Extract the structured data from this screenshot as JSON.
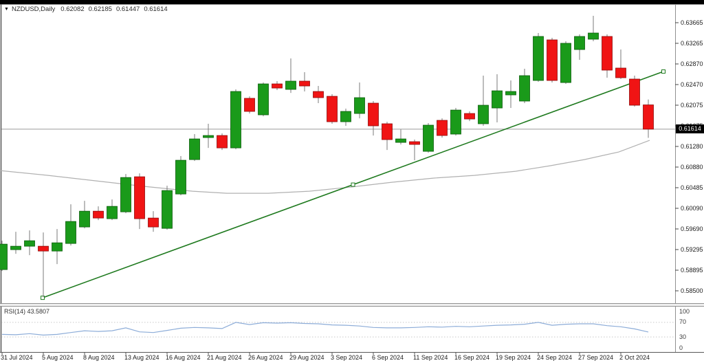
{
  "header": {
    "dropdown_icon": "▼",
    "symbol": "NZDUSD,Daily",
    "open": "0.62082",
    "high": "0.62185",
    "low": "0.61447",
    "close": "0.61614"
  },
  "price_axis": {
    "labels": [
      "0.63665",
      "0.63265",
      "0.62870",
      "0.62470",
      "0.62075",
      "0.61675",
      "0.61280",
      "0.60880",
      "0.60485",
      "0.60090",
      "0.59690",
      "0.59295",
      "0.58895",
      "0.58500"
    ],
    "current_price_badge": "0.61614"
  },
  "time_axis": {
    "labels": [
      {
        "text": "31 Jul 2024",
        "index": 0
      },
      {
        "text": "5 Aug 2024",
        "index": 3
      },
      {
        "text": "8 Aug 2024",
        "index": 6
      },
      {
        "text": "13 Aug 2024",
        "index": 9
      },
      {
        "text": "16 Aug 2024",
        "index": 12
      },
      {
        "text": "21 Aug 2024",
        "index": 15
      },
      {
        "text": "26 Aug 2024",
        "index": 18
      },
      {
        "text": "29 Aug 2024",
        "index": 21
      },
      {
        "text": "3 Sep 2024",
        "index": 24
      },
      {
        "text": "6 Sep 2024",
        "index": 27
      },
      {
        "text": "11 Sep 2024",
        "index": 30
      },
      {
        "text": "16 Sep 2024",
        "index": 33
      },
      {
        "text": "19 Sep 2024",
        "index": 36
      },
      {
        "text": "24 Sep 2024",
        "index": 39
      },
      {
        "text": "27 Sep 2024",
        "index": 42
      },
      {
        "text": "2 Oct 2024",
        "index": 45
      }
    ]
  },
  "rsi_panel": {
    "label": "RSI(14) 43.5807",
    "scale": [
      "100",
      "70",
      "30",
      "0"
    ]
  },
  "colors": {
    "bull": "#1a9a1a",
    "bull_border": "#0c5c0c",
    "bear": "#f01414",
    "bear_border": "#8f0b0b",
    "wick": "#7a7a7a",
    "trendline": "#1f7a1f",
    "ma": "#b0b0b0",
    "rsi": "#8cacd8",
    "rsi_level": "#c8c8c8",
    "price_line": "#9a9a9a",
    "axis_text": "#1a1a1a",
    "border": "#8f8f8f",
    "badge_bg": "#000000",
    "badge_text": "#ffffff"
  },
  "chart_data": {
    "type": "candlestick",
    "symbol": "NZDUSD",
    "timeframe": "Daily",
    "title": "NZDUSD,Daily 0.62082 0.62185 0.61447 0.61614",
    "price_axis_range": {
      "top_tick": 0.63665,
      "bottom_tick": 0.585,
      "ticks": 14
    },
    "current_price": 0.61614,
    "candles": [
      {
        "d": "31 Jul 2024",
        "o": 0.58909,
        "h": 0.59465,
        "l": 0.58883,
        "c": 0.59399
      },
      {
        "d": "1 Aug 2024",
        "o": 0.59293,
        "h": 0.59637,
        "l": 0.59213,
        "c": 0.59359
      },
      {
        "d": "2 Aug 2024",
        "o": 0.59359,
        "h": 0.59664,
        "l": 0.59187,
        "c": 0.59465
      },
      {
        "d": "5 Aug 2024",
        "o": 0.59359,
        "h": 0.59624,
        "l": 0.58379,
        "c": 0.59266
      },
      {
        "d": "6 Aug 2024",
        "o": 0.59266,
        "h": 0.5969,
        "l": 0.59015,
        "c": 0.59425
      },
      {
        "d": "7 Aug 2024",
        "o": 0.59412,
        "h": 0.60167,
        "l": 0.59372,
        "c": 0.59836
      },
      {
        "d": "8 Aug 2024",
        "o": 0.5973,
        "h": 0.60233,
        "l": 0.59703,
        "c": 0.60034
      },
      {
        "d": "9 Aug 2024",
        "o": 0.60034,
        "h": 0.60127,
        "l": 0.59862,
        "c": 0.59902
      },
      {
        "d": "12 Aug 2024",
        "o": 0.59889,
        "h": 0.60259,
        "l": 0.59862,
        "c": 0.60127
      },
      {
        "d": "13 Aug 2024",
        "o": 0.60021,
        "h": 0.6075,
        "l": 0.59995,
        "c": 0.60683
      },
      {
        "d": "14 Aug 2024",
        "o": 0.60697,
        "h": 0.60763,
        "l": 0.5969,
        "c": 0.59889
      },
      {
        "d": "15 Aug 2024",
        "o": 0.59902,
        "h": 0.60034,
        "l": 0.59637,
        "c": 0.5973
      },
      {
        "d": "16 Aug 2024",
        "o": 0.59703,
        "h": 0.60524,
        "l": 0.59677,
        "c": 0.60432
      },
      {
        "d": "19 Aug 2024",
        "o": 0.60365,
        "h": 0.61095,
        "l": 0.60339,
        "c": 0.61015
      },
      {
        "d": "20 Aug 2024",
        "o": 0.61028,
        "h": 0.61519,
        "l": 0.61002,
        "c": 0.61426
      },
      {
        "d": "21 Aug 2024",
        "o": 0.61452,
        "h": 0.61718,
        "l": 0.61253,
        "c": 0.61492
      },
      {
        "d": "22 Aug 2024",
        "o": 0.61492,
        "h": 0.61532,
        "l": 0.61214,
        "c": 0.61253
      },
      {
        "d": "23 Aug 2024",
        "o": 0.61253,
        "h": 0.6238,
        "l": 0.61227,
        "c": 0.6234
      },
      {
        "d": "26 Aug 2024",
        "o": 0.62208,
        "h": 0.62247,
        "l": 0.61916,
        "c": 0.61956
      },
      {
        "d": "27 Aug 2024",
        "o": 0.6189,
        "h": 0.62512,
        "l": 0.61863,
        "c": 0.62486
      },
      {
        "d": "28 Aug 2024",
        "o": 0.62486,
        "h": 0.62539,
        "l": 0.62367,
        "c": 0.62406
      },
      {
        "d": "29 Aug 2024",
        "o": 0.6238,
        "h": 0.62976,
        "l": 0.62313,
        "c": 0.62539
      },
      {
        "d": "30 Aug 2024",
        "o": 0.62539,
        "h": 0.62711,
        "l": 0.6234,
        "c": 0.62446
      },
      {
        "d": "2 Sep 2024",
        "o": 0.6234,
        "h": 0.62446,
        "l": 0.62115,
        "c": 0.62221
      },
      {
        "d": "3 Sep 2024",
        "o": 0.62247,
        "h": 0.62287,
        "l": 0.61718,
        "c": 0.61757
      },
      {
        "d": "4 Sep 2024",
        "o": 0.61757,
        "h": 0.62009,
        "l": 0.61678,
        "c": 0.61956
      },
      {
        "d": "5 Sep 2024",
        "o": 0.61916,
        "h": 0.62512,
        "l": 0.61823,
        "c": 0.62221
      },
      {
        "d": "6 Sep 2024",
        "o": 0.62115,
        "h": 0.62155,
        "l": 0.61492,
        "c": 0.61678
      },
      {
        "d": "9 Sep 2024",
        "o": 0.61718,
        "h": 0.61757,
        "l": 0.61214,
        "c": 0.61413
      },
      {
        "d": "10 Sep 2024",
        "o": 0.61359,
        "h": 0.61611,
        "l": 0.6132,
        "c": 0.61426
      },
      {
        "d": "11 Sep 2024",
        "o": 0.61373,
        "h": 0.61413,
        "l": 0.61015,
        "c": 0.6132
      },
      {
        "d": "12 Sep 2024",
        "o": 0.61187,
        "h": 0.61731,
        "l": 0.61161,
        "c": 0.61691
      },
      {
        "d": "13 Sep 2024",
        "o": 0.61784,
        "h": 0.61823,
        "l": 0.61452,
        "c": 0.61492
      },
      {
        "d": "16 Sep 2024",
        "o": 0.61519,
        "h": 0.62022,
        "l": 0.61492,
        "c": 0.61982
      },
      {
        "d": "17 Sep 2024",
        "o": 0.61916,
        "h": 0.61956,
        "l": 0.6177,
        "c": 0.6181
      },
      {
        "d": "18 Sep 2024",
        "o": 0.61718,
        "h": 0.62645,
        "l": 0.61678,
        "c": 0.62075
      },
      {
        "d": "19 Sep 2024",
        "o": 0.62022,
        "h": 0.62671,
        "l": 0.61744,
        "c": 0.62353
      },
      {
        "d": "20 Sep 2024",
        "o": 0.62274,
        "h": 0.62552,
        "l": 0.62022,
        "c": 0.6234
      },
      {
        "d": "23 Sep 2024",
        "o": 0.62155,
        "h": 0.62777,
        "l": 0.62115,
        "c": 0.62645
      },
      {
        "d": "24 Sep 2024",
        "o": 0.62552,
        "h": 0.63466,
        "l": 0.62526,
        "c": 0.634
      },
      {
        "d": "25 Sep 2024",
        "o": 0.63334,
        "h": 0.63373,
        "l": 0.62512,
        "c": 0.62552
      },
      {
        "d": "26 Sep 2024",
        "o": 0.62512,
        "h": 0.63307,
        "l": 0.62486,
        "c": 0.63268
      },
      {
        "d": "27 Sep 2024",
        "o": 0.63148,
        "h": 0.6344,
        "l": 0.6295,
        "c": 0.634
      },
      {
        "d": "30 Sep 2024",
        "o": 0.63347,
        "h": 0.63798,
        "l": 0.63307,
        "c": 0.63466
      },
      {
        "d": "1 Oct 2024",
        "o": 0.634,
        "h": 0.6344,
        "l": 0.62605,
        "c": 0.62751
      },
      {
        "d": "2 Oct 2024",
        "o": 0.62791,
        "h": 0.63148,
        "l": 0.62579,
        "c": 0.62605
      },
      {
        "d": "3 Oct 2024",
        "o": 0.62579,
        "h": 0.62645,
        "l": 0.62049,
        "c": 0.62075
      },
      {
        "d": "4 Oct 2024",
        "o": 0.62082,
        "h": 0.62185,
        "l": 0.61447,
        "c": 0.61614
      }
    ],
    "trendline": {
      "from_index": 2.95,
      "from_price": 0.58366,
      "to_index": 48.1,
      "to_price": 0.62724,
      "selected_anchors": 3
    },
    "ma_points": [
      {
        "i": -0.15,
        "p": 0.60816
      },
      {
        "i": 3.35,
        "p": 0.60723
      },
      {
        "i": 6.85,
        "p": 0.60618
      },
      {
        "i": 10.35,
        "p": 0.60512
      },
      {
        "i": 13.85,
        "p": 0.60419
      },
      {
        "i": 16.35,
        "p": 0.60379
      },
      {
        "i": 19.35,
        "p": 0.60379
      },
      {
        "i": 22.35,
        "p": 0.60419
      },
      {
        "i": 25.35,
        "p": 0.60498
      },
      {
        "i": 28.35,
        "p": 0.60591
      },
      {
        "i": 31.35,
        "p": 0.60671
      },
      {
        "i": 34.35,
        "p": 0.60724
      },
      {
        "i": 37.35,
        "p": 0.60803
      },
      {
        "i": 39.85,
        "p": 0.60909
      },
      {
        "i": 42.35,
        "p": 0.61028
      },
      {
        "i": 44.85,
        "p": 0.61174
      },
      {
        "i": 47.1,
        "p": 0.61399
      }
    ],
    "rsi": {
      "period": 14,
      "current": 43.5807,
      "overbought": 70,
      "oversold": 30,
      "scale_max": 100,
      "scale_min": 0,
      "values": [
        37,
        36,
        39,
        35,
        37,
        42,
        47,
        45,
        47,
        55,
        44,
        42,
        48,
        54,
        56,
        55,
        53,
        70,
        64,
        69,
        68,
        69,
        67,
        66,
        63,
        62,
        60,
        56,
        55,
        55,
        56,
        58,
        57,
        59,
        58,
        60,
        62,
        63,
        65,
        70,
        62,
        65,
        66,
        66,
        61,
        58,
        52,
        43.58
      ]
    }
  }
}
